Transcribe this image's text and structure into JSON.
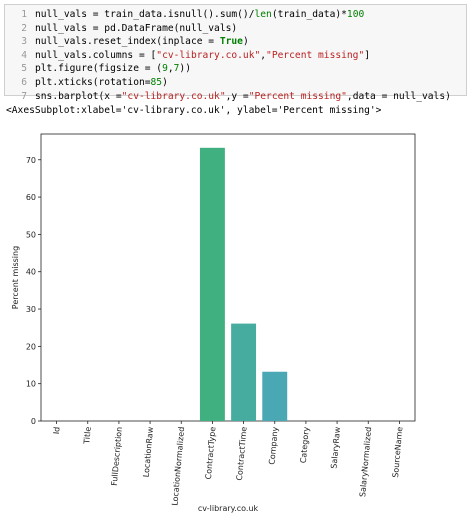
{
  "code_cell": {
    "lines": [
      {
        "num": "1",
        "tokens": [
          [
            "code",
            "null_vals = train_data.isnull().sum()/"
          ],
          [
            "fn",
            "len"
          ],
          [
            "code",
            "(train_data)*"
          ],
          [
            "num",
            "100"
          ]
        ]
      },
      {
        "num": "2",
        "tokens": [
          [
            "code",
            "null_vals = pd.DataFrame(null_vals)"
          ]
        ]
      },
      {
        "num": "3",
        "tokens": [
          [
            "code",
            "null_vals.reset_index(inplace = "
          ],
          [
            "kw",
            "True"
          ],
          [
            "code",
            ")"
          ]
        ]
      },
      {
        "num": "4",
        "tokens": [
          [
            "code",
            "null_vals.columns = ["
          ],
          [
            "str",
            "\"cv-library.co.uk\""
          ],
          [
            "code",
            ","
          ],
          [
            "str",
            "\"Percent missing\""
          ],
          [
            "code",
            "]"
          ]
        ]
      },
      {
        "num": "5",
        "tokens": [
          [
            "code",
            "plt.figure(figsize = ("
          ],
          [
            "num",
            "9"
          ],
          [
            "code",
            ","
          ],
          [
            "num",
            "7"
          ],
          [
            "code",
            "))"
          ]
        ]
      },
      {
        "num": "6",
        "tokens": [
          [
            "code",
            "plt.xticks(rotation="
          ],
          [
            "num",
            "85"
          ],
          [
            "code",
            ")"
          ]
        ]
      },
      {
        "num": "7",
        "tokens": [
          [
            "code",
            "sns.barplot(x ="
          ],
          [
            "str",
            "\"cv-library.co.uk\""
          ],
          [
            "code",
            ",y ="
          ],
          [
            "str",
            "\"Percent missing\""
          ],
          [
            "code",
            ",data = null_vals)"
          ]
        ]
      }
    ]
  },
  "output": {
    "repr": "<AxesSubplot:xlabel='cv-library.co.uk', ylabel='Percent missing'>"
  },
  "chart_data": {
    "type": "bar",
    "categories": [
      "Id",
      "Title",
      "FullDescription",
      "LocationRaw",
      "LocationNormalized",
      "ContractType",
      "ContractTime",
      "Company",
      "Category",
      "SalaryRaw",
      "SalaryNormalized",
      "SourceName"
    ],
    "values": [
      0,
      0,
      0,
      0,
      0,
      73.2,
      26.1,
      13.2,
      0,
      0,
      0,
      0
    ],
    "xlabel": "cv-library.co.uk",
    "ylabel": "Percent missing",
    "ylim": [
      0,
      76.9
    ],
    "yticks": [
      0,
      10,
      20,
      30,
      40,
      50,
      60,
      70
    ],
    "colors": [
      "#3a923a",
      "#4a9a4a",
      "#5aa35a",
      "#3b9e7a",
      "#3da585",
      "#41b080",
      "#46aca0",
      "#4aa8b4",
      "#4d9fbd",
      "#5296c4",
      "#5a8bc8",
      "#6280cc"
    ],
    "xtick_rotation": 85,
    "grid": false
  }
}
